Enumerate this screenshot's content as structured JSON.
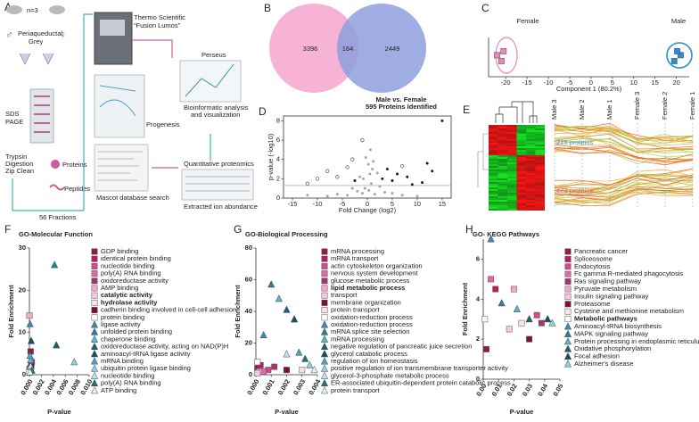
{
  "panel_labels": [
    "A",
    "B",
    "C",
    "D",
    "E",
    "F",
    "G",
    "H"
  ],
  "workflow": {
    "n": "n=3",
    "symbols": [
      "♂",
      "♀"
    ],
    "region": [
      "Periaqueductal",
      "Grey"
    ],
    "sds": [
      "SDS",
      "PAGE"
    ],
    "digestion": [
      "Trypsin",
      "Digestion",
      "Zip Clean"
    ],
    "proteins": "Proteins",
    "peptides": "Peptides",
    "fractions": "56 Fractions",
    "instrument": [
      "Thermo Scientific",
      "“Fusion Lumos”"
    ],
    "progenesis": "Progenesis",
    "mascot": "Mascot database search",
    "perseus": "Perseus",
    "bioinformatics": [
      "Bioinformatic analysis",
      "and visualization"
    ],
    "quantitative": "Quantitative proteomics",
    "extracted": "Extracted ion abundance"
  },
  "heatmap": {
    "columns": [
      "Male 3",
      "Male 2",
      "Male 1",
      "Female 3",
      "Female 2",
      "Female 1"
    ],
    "clusters": [
      "215 proteins",
      "473 proteins"
    ]
  },
  "chart_data": [
    {
      "type": "venn",
      "values": [
        3396,
        164,
        2449
      ],
      "colors": [
        "#f4a6cf",
        "#8e9fdd"
      ]
    },
    {
      "type": "scatter",
      "xlabel": "Component 1 (80.2%)",
      "annotations": [
        "Female",
        "Male"
      ],
      "xlim": [
        -24,
        23
      ],
      "ylim": [
        -1,
        1
      ],
      "xticks": [
        -20,
        -15,
        -10,
        -5,
        0,
        5,
        10,
        15,
        20
      ],
      "series": [
        {
          "color": "#e887b8",
          "marker": "square",
          "x": [
            -22,
            -20.5,
            -21
          ],
          "y": [
            0.1,
            0.3,
            -0.2
          ]
        },
        {
          "color": "#2a8fd0",
          "marker": "square",
          "x": [
            19.5,
            21,
            20.2
          ],
          "y": [
            -0.2,
            0.1,
            0.3
          ]
        }
      ]
    },
    {
      "type": "scatter",
      "title": "Male vs. Female",
      "subtitle": "595 Proteins Identified",
      "xlabel": "Fold Change (log2)",
      "ylabel": "p-value (-log10)",
      "xlim": [
        -16.8,
        16.8
      ],
      "ylim": [
        0,
        8.5
      ],
      "xticks": [
        -15,
        -10,
        -5,
        0,
        5,
        10,
        15
      ],
      "yticks": [
        0,
        2,
        4,
        6,
        8
      ],
      "hlines": [
        1.3
      ],
      "series": [
        {
          "color": "#a6a6a6",
          "marker": "circle",
          "x": [
            -1,
            -0.5,
            0.3,
            0.8,
            -2,
            1.5,
            -3,
            2.5,
            -4,
            3.5,
            -6,
            5,
            -8,
            7,
            -12,
            10,
            -0.8,
            0.5,
            1,
            -1.5,
            2,
            0.2,
            -0.3,
            0.6,
            1.2
          ],
          "y": [
            0.5,
            1,
            0.8,
            1.5,
            0.7,
            0.4,
            1,
            1.2,
            0.3,
            0.6,
            0.4,
            0.5,
            0.2,
            0.3,
            0.3,
            0.2,
            2,
            2.5,
            3,
            2.2,
            2.6,
            3.5,
            4.2,
            5,
            3.8
          ]
        },
        {
          "color": "#1a1a1a",
          "marker": "circle",
          "x": [
            3,
            5,
            6,
            4,
            8,
            11,
            12,
            13,
            15,
            9,
            -2.5
          ],
          "y": [
            2,
            1.8,
            2.5,
            3,
            2.2,
            1.6,
            3.6,
            2.8,
            8,
            1.4,
            1.8
          ]
        },
        {
          "color": "#555555",
          "marker": "ring",
          "x": [
            -10,
            -8,
            -12,
            -6,
            -4,
            -3,
            -1,
            7
          ],
          "y": [
            2,
            2.8,
            1.5,
            2.2,
            3.2,
            4,
            6,
            3.3
          ]
        }
      ]
    },
    {
      "type": "scatter",
      "title": "GO-Molecular Function",
      "xlabel": "P-value",
      "ylabel": "Fold  Enrichment",
      "xlim": [
        0,
        0.01
      ],
      "ylim": [
        0,
        30
      ],
      "xticks": [
        {
          "value": 0,
          "label": "0.000"
        },
        {
          "value": 0.002,
          "label": "0.002"
        },
        {
          "value": 0.004,
          "label": "0.004"
        },
        {
          "value": 0.006,
          "label": "0.006"
        },
        {
          "value": 0.008,
          "label": "0.008"
        },
        {
          "value": 0.01,
          "label": "0.010"
        }
      ],
      "yticks": [
        0,
        10,
        20,
        30
      ],
      "series": [
        {
          "name": "GDP binding",
          "color": "#8e1f3f",
          "marker": "square",
          "x": [
            0.0002
          ],
          "y": [
            5.5
          ]
        },
        {
          "name": "identical protein binding",
          "color": "#c0185e",
          "marker": "square",
          "x": [
            0.0001
          ],
          "y": [
            1.5
          ]
        },
        {
          "name": "nucleotide binding",
          "color": "#d14a8b",
          "marker": "square",
          "x": [
            0.0003
          ],
          "y": [
            2.5
          ]
        },
        {
          "name": "poly(A) RNA binding",
          "color": "#e06aa6",
          "marker": "square",
          "x": [
            0
          ],
          "y": [
            1.2
          ]
        },
        {
          "name": "oxidoreductase activity",
          "color": "#a8336f",
          "marker": "square",
          "x": [
            0.0004
          ],
          "y": [
            3
          ]
        },
        {
          "name": "AMP binding",
          "color": "#f0a8cd",
          "marker": "square",
          "x": [
            0
          ],
          "y": [
            14
          ]
        },
        {
          "name": "catalytic activity",
          "bold": true,
          "color": "#f6c9df",
          "marker": "square",
          "x": [
            0.0001
          ],
          "y": [
            0.8
          ]
        },
        {
          "name": "hydrolase activity",
          "bold": true,
          "color": "#fbe0ed",
          "marker": "square",
          "x": [
            0.0002
          ],
          "y": [
            1
          ]
        },
        {
          "name": "cadherin binding involved in cell-cell adhesion",
          "color": "#7a1236",
          "marker": "square",
          "x": [
            0.0003
          ],
          "y": [
            2
          ]
        },
        {
          "name": "protein binding",
          "color": "#ffffff",
          "marker": "square",
          "x": [
            0
          ],
          "y": [
            0.5
          ]
        },
        {
          "name": "ligase activity",
          "color": "#3a8fa8",
          "marker": "triangle",
          "x": [
            0.0001
          ],
          "y": [
            12
          ]
        },
        {
          "name": "unfolded protein binding",
          "color": "#2d7f96",
          "marker": "triangle",
          "x": [
            0.0042
          ],
          "y": [
            26
          ]
        },
        {
          "name": "chaperone binding",
          "color": "#5bb4c9",
          "marker": "triangle",
          "x": [
            0.0002
          ],
          "y": [
            3.5
          ]
        },
        {
          "name": "oxidoreductase activity, acting on NAD(P)H",
          "color": "#1f5f78",
          "marker": "triangle",
          "x": [
            0.0045
          ],
          "y": [
            7
          ]
        },
        {
          "name": "aminoacyl-tRNA ligase activity",
          "color": "#1a4d66",
          "marker": "triangle",
          "x": [
            0.0003
          ],
          "y": [
            8
          ]
        },
        {
          "name": "mRNA binding",
          "color": "#4aa3bd",
          "marker": "triangle",
          "x": [
            0.0001
          ],
          "y": [
            4.5
          ]
        },
        {
          "name": "ubiquitin protein ligase binding",
          "color": "#8fd0de",
          "marker": "triangle",
          "x": [
            0.0075
          ],
          "y": [
            3
          ]
        },
        {
          "name": "nucleotide binding",
          "color": "#bfe4ec",
          "marker": "triangle",
          "x": [
            0.0002
          ],
          "y": [
            2
          ]
        },
        {
          "name": "poly(A) RNA binding",
          "color": "#256f87",
          "marker": "triangle",
          "x": [
            0.0004
          ],
          "y": [
            1
          ]
        },
        {
          "name": "ATP binding",
          "color": "#e3f3f7",
          "marker": "triangle",
          "x": [
            0.0001
          ],
          "y": [
            0.6
          ]
        }
      ]
    },
    {
      "type": "scatter",
      "title": "GO-Biological   Processing",
      "xlabel": "P-value",
      "ylabel": "Fold  Enrichment",
      "xlim": [
        0,
        0.004
      ],
      "ylim": [
        0,
        80
      ],
      "xticks": [
        {
          "value": 0,
          "label": "0.000"
        },
        {
          "value": 0.001,
          "label": "0.001"
        },
        {
          "value": 0.002,
          "label": "0.002"
        },
        {
          "value": 0.003,
          "label": "0.003"
        },
        {
          "value": 0.004,
          "label": "0.004"
        }
      ],
      "yticks": [
        0,
        20,
        40,
        60,
        80
      ],
      "series": [
        {
          "name": "mRNA processing",
          "color": "#8e1f3f",
          "marker": "square",
          "x": [
            0.0001
          ],
          "y": [
            4
          ]
        },
        {
          "name": "mRNA transport",
          "color": "#c0185e",
          "marker": "square",
          "x": [
            0.0003
          ],
          "y": [
            6
          ]
        },
        {
          "name": "actin cytoskeleton organization",
          "color": "#d14a8b",
          "marker": "square",
          "x": [
            0.0008
          ],
          "y": [
            3
          ]
        },
        {
          "name": "nervous system development",
          "color": "#e06aa6",
          "marker": "square",
          "x": [
            0.0005
          ],
          "y": [
            2
          ]
        },
        {
          "name": "glucose metabolic process",
          "color": "#a8336f",
          "marker": "square",
          "x": [
            0.0012
          ],
          "y": [
            5
          ]
        },
        {
          "name": "lipid metabolic process",
          "bold": true,
          "color": "#f0a8cd",
          "marker": "square",
          "x": [
            0.0002
          ],
          "y": [
            2
          ]
        },
        {
          "name": "transport",
          "color": "#f6c9df",
          "marker": "square",
          "x": [
            0.0001
          ],
          "y": [
            1
          ]
        },
        {
          "name": "membrane organization",
          "color": "#7a1236",
          "marker": "square",
          "x": [
            0.002
          ],
          "y": [
            3
          ]
        },
        {
          "name": "protein transport",
          "color": "#fbe0ed",
          "marker": "square",
          "x": [
            0.003
          ],
          "y": [
            3
          ]
        },
        {
          "name": "oxidation-reduction process",
          "color": "#ffffff",
          "marker": "square",
          "x": [
            0.0001
          ],
          "y": [
            8
          ]
        },
        {
          "name": "oxidation-reduction process",
          "color": "#3a8fa8",
          "marker": "triangle",
          "x": [
            0.0005
          ],
          "y": [
            25
          ]
        },
        {
          "name": "mRNA splice site selection",
          "color": "#2d7f96",
          "marker": "triangle",
          "x": [
            0.001
          ],
          "y": [
            57
          ]
        },
        {
          "name": "mRNA processing",
          "color": "#5bb4c9",
          "marker": "triangle",
          "x": [
            0.0015
          ],
          "y": [
            48
          ]
        },
        {
          "name": "negative regulation of pancreatic juice secretion",
          "color": "#1f5f78",
          "marker": "triangle",
          "x": [
            0.002
          ],
          "y": [
            41
          ]
        },
        {
          "name": "glycerol catabolic process",
          "color": "#1a4d66",
          "marker": "triangle",
          "x": [
            0.0025
          ],
          "y": [
            35
          ]
        },
        {
          "name": "regulation of ion homeostasis",
          "color": "#4aa3bd",
          "marker": "triangle",
          "x": [
            0.0028
          ],
          "y": [
            14
          ]
        },
        {
          "name": "positive regulation of ion transmembrane transporter activity",
          "color": "#8fd0de",
          "marker": "triangle",
          "x": [
            0.0035
          ],
          "y": [
            6
          ]
        },
        {
          "name": "glycerol-3-phosphate metabolic process",
          "color": "#bfe4ec",
          "marker": "triangle",
          "x": [
            0.002
          ],
          "y": [
            13
          ]
        },
        {
          "name": "ER-associated ubiquitin-dependent protein catabolic process",
          "color": "#256f87",
          "marker": "triangle",
          "x": [
            0.0032
          ],
          "y": [
            10
          ]
        },
        {
          "name": "protein transport",
          "color": "#e3f3f7",
          "marker": "triangle",
          "x": [
            0.0038
          ],
          "y": [
            3
          ]
        }
      ]
    },
    {
      "type": "scatter",
      "title": "GO- KEGG Pathways",
      "xlabel": "P-value",
      "ylabel": "Fold  Enrichment",
      "xlim": [
        0,
        0.05
      ],
      "ylim": [
        0,
        7
      ],
      "xticks": [
        {
          "value": 0,
          "label": "0.00"
        },
        {
          "value": 0.01,
          "label": "0.01"
        },
        {
          "value": 0.02,
          "label": "0.02"
        },
        {
          "value": 0.03,
          "label": "0.03"
        },
        {
          "value": 0.04,
          "label": "0.04"
        },
        {
          "value": 0.05,
          "label": "0.05"
        }
      ],
      "yticks": [
        0,
        2,
        4,
        6
      ],
      "series": [
        {
          "name": "Pancreatic cancer",
          "color": "#8e1f3f",
          "marker": "square",
          "x": [
            0.002
          ],
          "y": [
            1.5
          ]
        },
        {
          "name": "Spliceosome",
          "color": "#c0185e",
          "marker": "square",
          "x": [
            0.008
          ],
          "y": [
            4.5
          ]
        },
        {
          "name": "Endocytosis",
          "color": "#d14a8b",
          "marker": "square",
          "x": [
            0.035
          ],
          "y": [
            3.2
          ]
        },
        {
          "name": "Fc gamma R-mediated phagocytosis",
          "color": "#e06aa6",
          "marker": "square",
          "x": [
            0.005
          ],
          "y": [
            5
          ]
        },
        {
          "name": "Ras signaling pathway",
          "color": "#a8336f",
          "marker": "square",
          "x": [
            0.038
          ],
          "y": [
            2.8
          ]
        },
        {
          "name": "Pyruvate metabolism",
          "color": "#f0a8cd",
          "marker": "square",
          "x": [
            0.02
          ],
          "y": [
            4.5
          ]
        },
        {
          "name": "Insulin signaling pathway",
          "color": "#f6c9df",
          "marker": "square",
          "x": [
            0.017
          ],
          "y": [
            2.5
          ]
        },
        {
          "name": "Proteasome",
          "color": "#7a1236",
          "marker": "square",
          "x": [
            0.03
          ],
          "y": [
            2
          ]
        },
        {
          "name": "Cysteine and methionine metabolism",
          "color": "#fbe0ed",
          "marker": "square",
          "x": [
            0.025
          ],
          "y": [
            2.8
          ]
        },
        {
          "name": "Metabolic pathways",
          "bold": true,
          "color": "#ffffff",
          "marker": "square",
          "x": [
            0.001
          ],
          "y": [
            3
          ]
        },
        {
          "name": "Aminoacyl-tRNA biosynthesis",
          "color": "#3a8fa8",
          "marker": "triangle",
          "x": [
            0.005
          ],
          "y": [
            7
          ]
        },
        {
          "name": "MAPK signaling pathway",
          "color": "#2d7f96",
          "marker": "triangle",
          "x": [
            0.012
          ],
          "y": [
            3.8
          ]
        },
        {
          "name": "Protein processing in endoplasmic reticulum",
          "color": "#5bb4c9",
          "marker": "triangle",
          "x": [
            0.022
          ],
          "y": [
            3.5
          ]
        },
        {
          "name": "Oxidative phosphorylation",
          "color": "#1f5f78",
          "marker": "triangle",
          "x": [
            0.03
          ],
          "y": [
            3
          ]
        },
        {
          "name": "Focal adhesion",
          "color": "#1a4d66",
          "marker": "triangle",
          "x": [
            0.042
          ],
          "y": [
            3
          ]
        },
        {
          "name": "Alzheimer's disease",
          "color": "#8fd0de",
          "marker": "triangle",
          "x": [
            0.045
          ],
          "y": [
            2.8
          ]
        }
      ]
    }
  ]
}
